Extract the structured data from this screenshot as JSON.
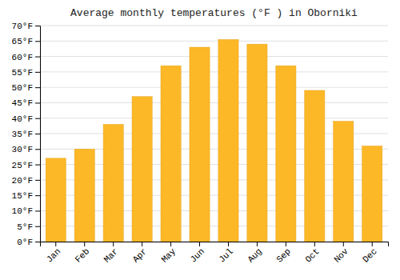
{
  "chart_data": {
    "type": "bar",
    "title": "Average monthly temperatures (°F ) in Oborniki",
    "categories": [
      "Jan",
      "Feb",
      "Mar",
      "Apr",
      "May",
      "Jun",
      "Jul",
      "Aug",
      "Sep",
      "Oct",
      "Nov",
      "Dec"
    ],
    "values": [
      27,
      30,
      38,
      47,
      57,
      63,
      65.5,
      64,
      57,
      49,
      39,
      31
    ],
    "color": "#FDB827",
    "ylim": [
      0,
      70
    ],
    "yticks": [
      {
        "value": 0,
        "label": "0°F"
      },
      {
        "value": 5,
        "label": "5°F"
      },
      {
        "value": 10,
        "label": "10°F"
      },
      {
        "value": 15,
        "label": "15°F"
      },
      {
        "value": 20,
        "label": "20°F"
      },
      {
        "value": 25,
        "label": "25°F"
      },
      {
        "value": 30,
        "label": "30°F"
      },
      {
        "value": 35,
        "label": "35°F"
      },
      {
        "value": 40,
        "label": "40°F"
      },
      {
        "value": 45,
        "label": "45°F"
      },
      {
        "value": 50,
        "label": "50°F"
      },
      {
        "value": 55,
        "label": "55°F"
      },
      {
        "value": 60,
        "label": "60°F"
      },
      {
        "value": 65,
        "label": "65°F"
      },
      {
        "value": 70,
        "label": "70°F"
      }
    ],
    "grid": true
  }
}
